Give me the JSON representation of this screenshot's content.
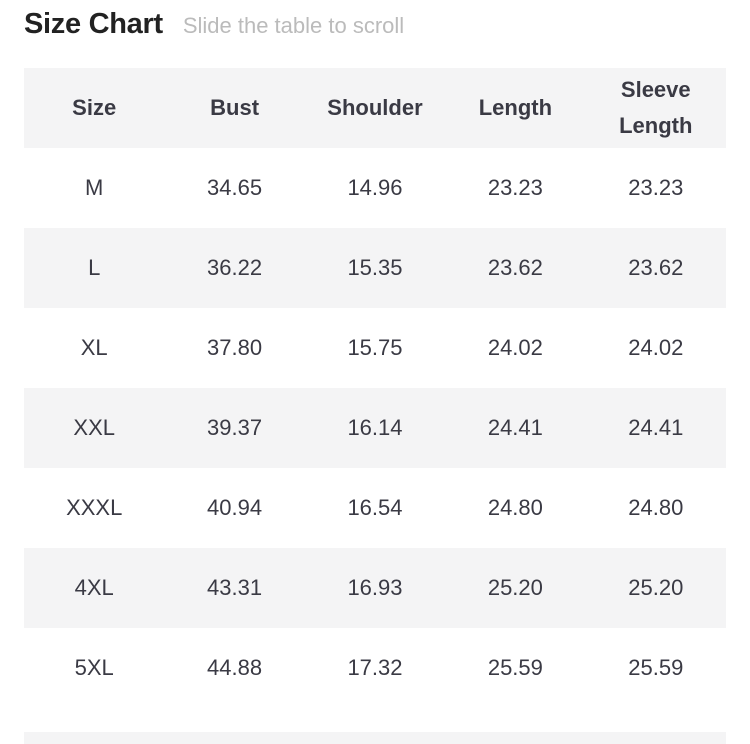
{
  "header": {
    "title": "Size Chart",
    "subtitle": "Slide the table to scroll"
  },
  "table": {
    "columns": [
      "Size",
      "Bust",
      "Shoulder",
      "Length",
      "Sleeve Length"
    ],
    "rows": [
      [
        "M",
        "34.65",
        "14.96",
        "23.23",
        "23.23"
      ],
      [
        "L",
        "36.22",
        "15.35",
        "23.62",
        "23.62"
      ],
      [
        "XL",
        "37.80",
        "15.75",
        "24.02",
        "24.02"
      ],
      [
        "XXL",
        "39.37",
        "16.14",
        "24.41",
        "24.41"
      ],
      [
        "XXXL",
        "40.94",
        "16.54",
        "24.80",
        "24.80"
      ],
      [
        "4XL",
        "43.31",
        "16.93",
        "25.20",
        "25.20"
      ],
      [
        "5XL",
        "44.88",
        "17.32",
        "25.59",
        "25.59"
      ]
    ]
  }
}
